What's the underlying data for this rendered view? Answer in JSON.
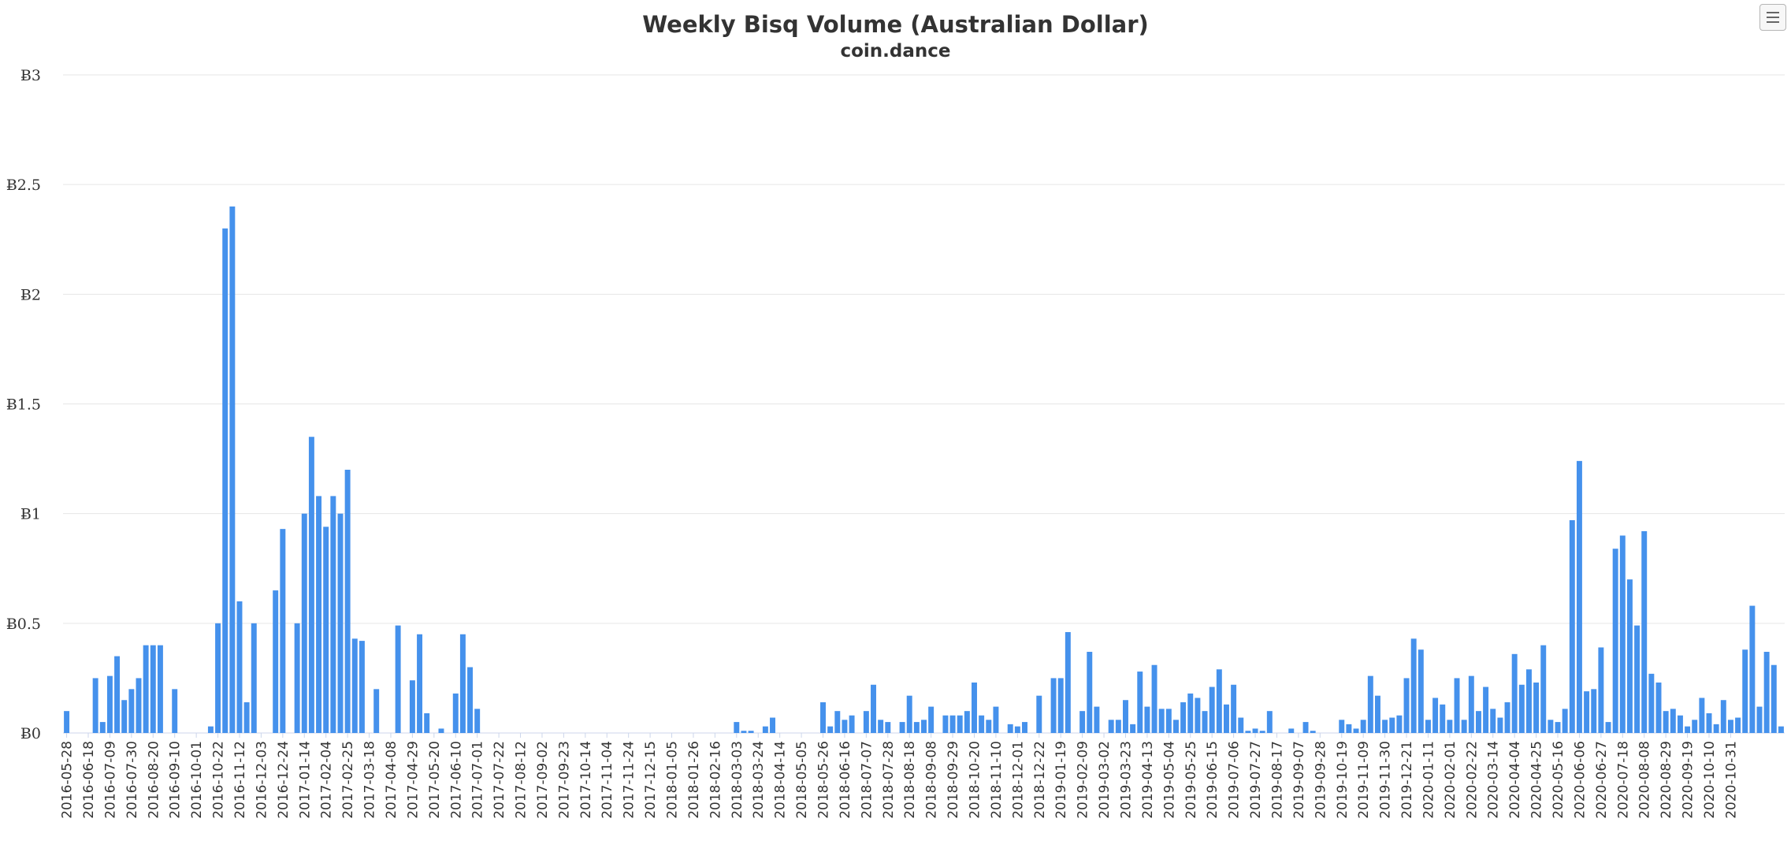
{
  "chart_data": {
    "type": "bar",
    "title": "Weekly Bisq Volume (Australian Dollar)",
    "subtitle": "coin.dance",
    "xlabel": "",
    "ylabel": "",
    "ylim": [
      0,
      3
    ],
    "grid": true,
    "legend": "none",
    "bar_color": "#4591ec",
    "y_ticks": [
      "Ƀ0",
      "Ƀ0.5",
      "Ƀ1",
      "Ƀ1.5",
      "Ƀ2",
      "Ƀ2.5",
      "Ƀ3"
    ],
    "x_tick_labels": [
      "2016-05-28",
      "2016-06-18",
      "2016-07-09",
      "2016-07-30",
      "2016-08-20",
      "2016-09-10",
      "2016-10-01",
      "2016-10-22",
      "2016-11-12",
      "2016-12-03",
      "2016-12-24",
      "2017-01-14",
      "2017-02-04",
      "2017-02-25",
      "2017-03-18",
      "2017-04-08",
      "2017-04-29",
      "2017-05-20",
      "2017-06-10",
      "2017-07-01",
      "2017-07-22",
      "2017-08-12",
      "2017-09-02",
      "2017-09-23",
      "2017-10-14",
      "2017-11-04",
      "2017-11-24",
      "2017-12-15",
      "2018-01-05",
      "2018-01-26",
      "2018-02-16",
      "2018-03-03",
      "2018-03-24",
      "2018-04-14",
      "2018-05-05",
      "2018-05-26",
      "2018-06-16",
      "2018-07-07",
      "2018-07-28",
      "2018-08-18",
      "2018-09-08",
      "2018-09-29",
      "2018-10-20",
      "2018-11-10",
      "2018-12-01",
      "2018-12-22",
      "2019-01-19",
      "2019-02-09",
      "2019-03-02",
      "2019-03-23",
      "2019-04-13",
      "2019-05-04",
      "2019-05-25",
      "2019-06-15",
      "2019-07-06",
      "2019-07-27",
      "2019-08-17",
      "2019-09-07",
      "2019-09-28",
      "2019-10-19",
      "2019-11-09",
      "2019-11-30",
      "2019-12-21",
      "2020-01-11",
      "2020-02-01",
      "2020-02-22",
      "2020-03-14",
      "2020-04-04",
      "2020-04-25",
      "2020-05-16",
      "2020-06-06",
      "2020-06-27",
      "2020-07-18",
      "2020-08-08",
      "2020-08-29",
      "2020-09-19",
      "2020-10-10",
      "2020-10-31"
    ],
    "values": [
      0.1,
      0,
      0,
      0,
      0.25,
      0.05,
      0.26,
      0.35,
      0.15,
      0.2,
      0.25,
      0.4,
      0.4,
      0.4,
      0,
      0.2,
      0,
      0,
      0,
      0,
      0.03,
      0.5,
      2.3,
      2.4,
      0.6,
      0.14,
      0.5,
      0,
      0,
      0.65,
      0.93,
      0,
      0.5,
      1.0,
      1.35,
      1.08,
      0.94,
      1.08,
      1.0,
      1.2,
      0.43,
      0.42,
      0,
      0.2,
      0,
      0,
      0.49,
      0,
      0.24,
      0.45,
      0.09,
      0,
      0.02,
      0,
      0.18,
      0.45,
      0.3,
      0.11,
      0,
      0,
      0,
      0,
      0,
      0,
      0,
      0,
      0,
      0,
      0,
      0,
      0,
      0,
      0,
      0,
      0,
      0,
      0,
      0,
      0,
      0,
      0,
      0,
      0,
      0,
      0,
      0,
      0,
      0,
      0,
      0,
      0,
      0,
      0,
      0.05,
      0.01,
      0.01,
      0,
      0.03,
      0.07,
      0,
      0,
      0,
      0,
      0,
      0,
      0.14,
      0.03,
      0.1,
      0.06,
      0.08,
      0,
      0.1,
      0.22,
      0.06,
      0.05,
      0,
      0.05,
      0.17,
      0.05,
      0.06,
      0.12,
      0,
      0.08,
      0.08,
      0.08,
      0.1,
      0.23,
      0.08,
      0.06,
      0.12,
      0,
      0.04,
      0.03,
      0.05,
      0,
      0.17,
      0,
      0.25,
      0.25,
      0.46,
      0,
      0.1,
      0.37,
      0.12,
      0,
      0.06,
      0.06,
      0.15,
      0.04,
      0.28,
      0.12,
      0.31,
      0.11,
      0.11,
      0.06,
      0.14,
      0.18,
      0.16,
      0.1,
      0.21,
      0.29,
      0.13,
      0.22,
      0.07,
      0.01,
      0.02,
      0.01,
      0.1,
      0,
      0,
      0.02,
      0,
      0.05,
      0.01,
      0,
      0,
      0,
      0.06,
      0.04,
      0.02,
      0.06,
      0.26,
      0.17,
      0.06,
      0.07,
      0.08,
      0.25,
      0.43,
      0.38,
      0.06,
      0.16,
      0.13,
      0.06,
      0.25,
      0.06,
      0.26,
      0.1,
      0.21,
      0.11,
      0.07,
      0.14,
      0.36,
      0.22,
      0.29,
      0.23,
      0.4,
      0.06,
      0.05,
      0.11,
      0.97,
      1.24,
      0.19,
      0.2,
      0.39,
      0.05,
      0.84,
      0.9,
      0.7,
      0.49,
      0.92,
      0.27,
      0.23,
      0.1,
      0.11,
      0.08,
      0.03,
      0.06,
      0.16,
      0.09,
      0.04,
      0.15,
      0.06,
      0.07,
      0.38,
      0.58,
      0.12,
      0.37,
      0.31,
      0.03
    ]
  }
}
